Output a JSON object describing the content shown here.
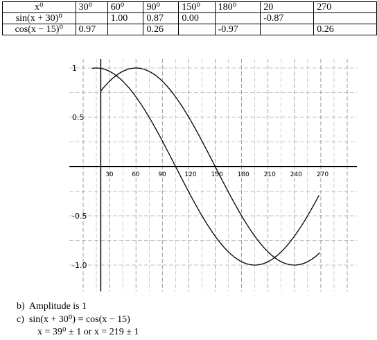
{
  "table": {
    "header": [
      "x⁰",
      "30⁰",
      "60⁰",
      "90⁰",
      "150⁰",
      "180⁰",
      "20",
      "270"
    ],
    "rows": [
      [
        "sin(x + 30)⁰",
        null,
        "1.00",
        "0.87",
        "0.00",
        null,
        "-0.87",
        null
      ],
      [
        "cos(x − 15)⁰",
        "0.97",
        null,
        "0.26",
        null,
        "-0.97",
        null,
        "0.26"
      ]
    ]
  },
  "graph": {
    "y_labels": [
      "1",
      "0.5",
      "-0.5",
      "-1.0"
    ],
    "x_labels": [
      "30",
      "60",
      "90",
      "120",
      "150",
      "180",
      "210",
      "240",
      "270"
    ]
  },
  "answers": {
    "b": {
      "marker": "b)",
      "text": "Amplitude is 1"
    },
    "c": {
      "marker": "c)",
      "lines": [
        "sin(x + 30⁰) = cos(x − 15)",
        "x = 39⁰ ± 1 or x = 219 ± 1"
      ]
    }
  }
}
